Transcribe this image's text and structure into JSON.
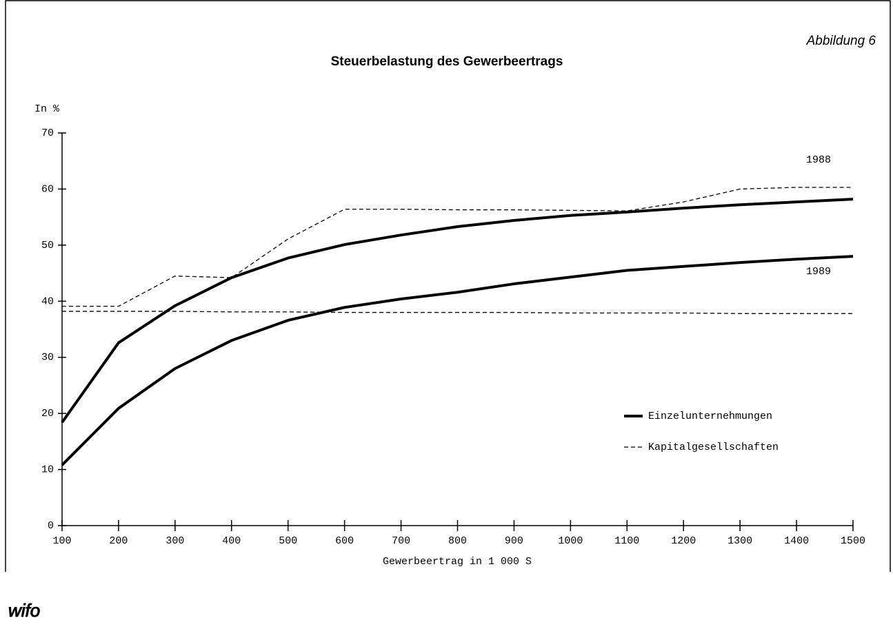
{
  "chart_data": {
    "type": "line",
    "title": "Steuerbelastung des Gewerbeertrags",
    "figure_label": "Abbildung 6",
    "y_label": "In %",
    "x_label": "Gewerbeertrag in 1 000 S",
    "logo": "wifo",
    "x": [
      100,
      200,
      300,
      400,
      500,
      600,
      700,
      800,
      900,
      1000,
      1100,
      1200,
      1300,
      1400,
      1500
    ],
    "xlim": [
      100,
      1500
    ],
    "xticks": [
      100,
      200,
      300,
      400,
      500,
      600,
      700,
      800,
      900,
      1000,
      1100,
      1200,
      1300,
      1400,
      1500
    ],
    "ylim": [
      0,
      70
    ],
    "yticks": [
      0,
      10,
      20,
      30,
      40,
      50,
      60,
      70
    ],
    "grid": false,
    "series": [
      {
        "name": "Einzelunternehmungen",
        "color": "#000000",
        "dashed": false,
        "values": [
          18.4,
          32.6,
          39.2,
          44.2,
          47.7,
          50.1,
          51.8,
          53.3,
          54.4,
          55.3,
          55.9,
          56.6,
          57.2,
          57.7,
          58.2
        ]
      },
      {
        "name": "Einzelunternehmungen",
        "color": "#000000",
        "dashed": false,
        "label": "1989",
        "values": [
          10.8,
          20.9,
          28.0,
          33.0,
          36.6,
          38.9,
          40.4,
          41.6,
          43.1,
          44.3,
          45.5,
          46.2,
          46.9,
          47.5,
          48.0
        ]
      },
      {
        "name": "Kapitalgesellschaften",
        "color": "#000000",
        "dashed": true,
        "label": "1988",
        "values": [
          39.1,
          39.1,
          44.5,
          44.2,
          51.1,
          56.4,
          56.4,
          56.3,
          56.3,
          56.2,
          56.1,
          57.7,
          60.0,
          60.3,
          60.3
        ]
      },
      {
        "name": "Kapitalgesellschaften",
        "color": "#000000",
        "dashed": true,
        "values": [
          38.2,
          38.2,
          38.2,
          38.1,
          38.1,
          38.0,
          38.0,
          38.0,
          38.0,
          37.9,
          37.9,
          37.9,
          37.8,
          37.8,
          37.8
        ]
      }
    ]
  }
}
